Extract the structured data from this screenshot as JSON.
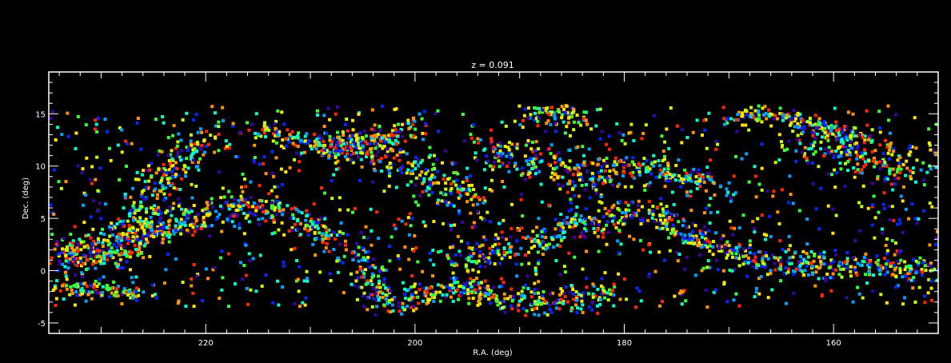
{
  "chart_data": {
    "type": "scatter",
    "title": "z = 0.091",
    "xlabel": "R.A. (deg)",
    "ylabel": "Dec. (deg)",
    "xlim": [
      235,
      150
    ],
    "ylim": [
      -6,
      19
    ],
    "x_ticks": [
      220,
      200,
      180,
      160
    ],
    "y_ticks": [
      -5,
      0,
      5,
      10,
      15
    ],
    "grid": false,
    "legend": "none",
    "background": "#000000",
    "axis_color": "#ffffff",
    "marker": "square",
    "color_scale": [
      "#3c00a0",
      "#0028ff",
      "#00a0ff",
      "#00ffd0",
      "#3cff3c",
      "#c8ff00",
      "#ffe600",
      "#ff9600",
      "#ff2800"
    ],
    "structures": [
      {
        "ra": [
          234,
          228,
          224,
          218,
          212,
          206,
          203
        ],
        "dec": [
          1.5,
          2.0,
          4.0,
          6.0,
          5.5,
          2.0,
          -2.0
        ],
        "width": 1.0
      },
      {
        "ra": [
          234,
          231,
          228,
          226,
          224,
          222,
          220
        ],
        "dec": [
          2.0,
          1.5,
          2.5,
          6.0,
          8.5,
          11.5,
          12.5
        ],
        "width": 1.3
      },
      {
        "ra": [
          234,
          230,
          226
        ],
        "dec": [
          -1.5,
          -1.8,
          -2.2
        ],
        "width": 0.6
      },
      {
        "ra": [
          215,
          212,
          209,
          206,
          203,
          200
        ],
        "dec": [
          14.0,
          12.5,
          12.0,
          12.3,
          12.8,
          13.5
        ],
        "width": 0.8
      },
      {
        "ra": [
          208,
          205,
          202,
          199,
          196,
          194
        ],
        "dec": [
          12.5,
          11.5,
          11.0,
          9.0,
          7.5,
          6.0
        ],
        "width": 1.1
      },
      {
        "ra": [
          204,
          200,
          196,
          192,
          188,
          184,
          181
        ],
        "dec": [
          -3.0,
          -2.5,
          -1.5,
          -2.5,
          -3.0,
          -3.0,
          -2.0
        ],
        "width": 0.9
      },
      {
        "ra": [
          193,
          189,
          185,
          182
        ],
        "dec": [
          11.5,
          10.5,
          9.5,
          8.0
        ],
        "width": 1.2
      },
      {
        "ra": [
          196,
          192,
          188,
          185,
          182
        ],
        "dec": [
          0.5,
          2.0,
          2.5,
          4.5,
          5.0
        ],
        "width": 1.0
      },
      {
        "ra": [
          182,
          178,
          175,
          172
        ],
        "dec": [
          10.0,
          9.5,
          9.0,
          8.5
        ],
        "width": 0.8
      },
      {
        "ra": [
          181,
          177,
          174,
          171,
          168
        ],
        "dec": [
          5.5,
          5.5,
          3.5,
          2.0,
          1.5
        ],
        "width": 0.8
      },
      {
        "ra": [
          163,
          159,
          155,
          152
        ],
        "dec": [
          12.5,
          12.0,
          11.0,
          9.5
        ],
        "width": 1.5
      },
      {
        "ra": [
          168,
          163,
          158,
          154,
          151
        ],
        "dec": [
          1.0,
          0.5,
          0.5,
          0.0,
          0.0
        ],
        "width": 0.7
      },
      {
        "ra": [
          170,
          166,
          162,
          158
        ],
        "dec": [
          14.5,
          15.0,
          14.0,
          13.0
        ],
        "width": 0.6
      },
      {
        "ra": [
          189,
          186,
          183
        ],
        "dec": [
          14.5,
          15.0,
          14.2
        ],
        "width": 0.7
      }
    ],
    "field_density": 1200,
    "filament_density": 2600
  }
}
